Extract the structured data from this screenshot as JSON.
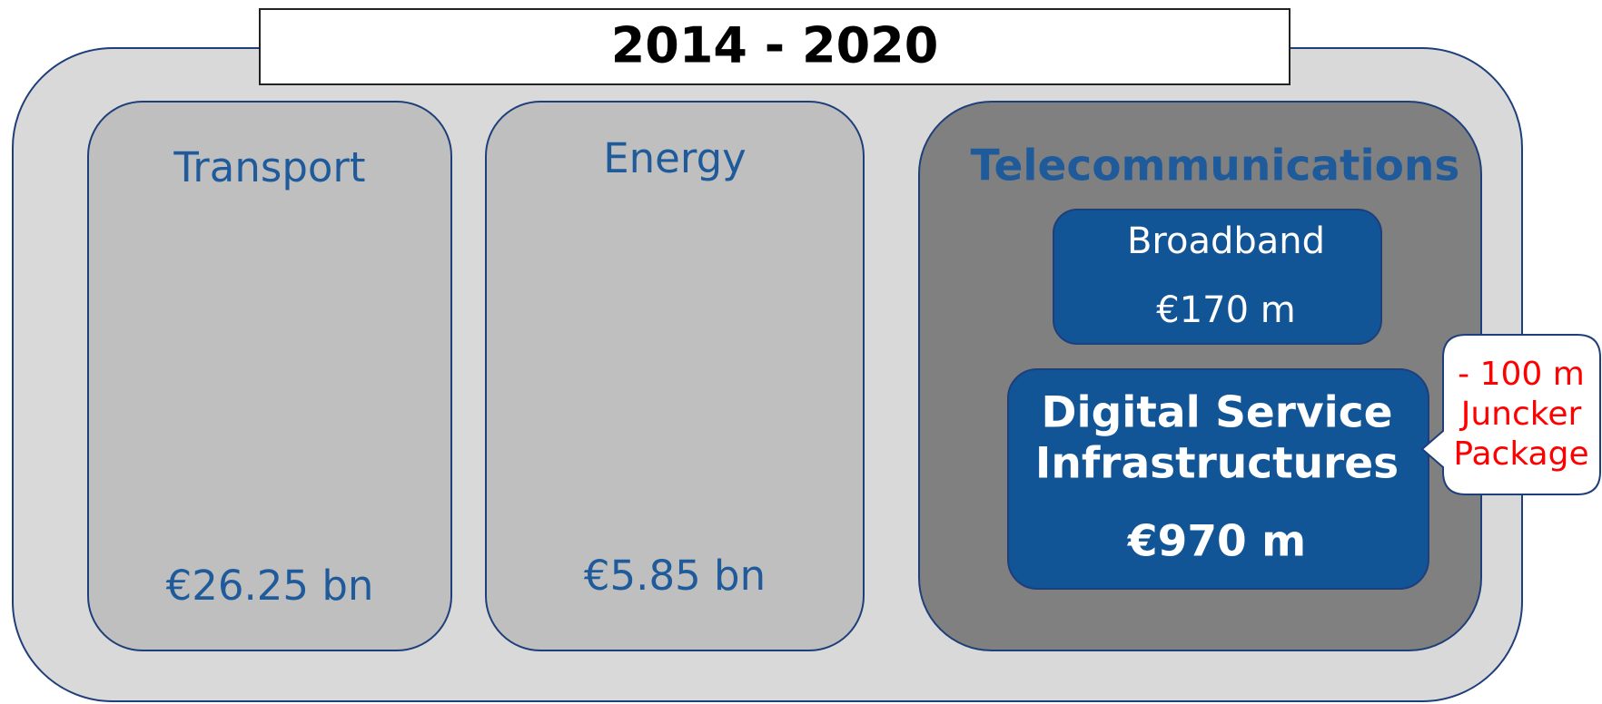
{
  "title": "2014 - 2020",
  "sectors": [
    {
      "label": "Transport",
      "amount": "€26.25 bn"
    },
    {
      "label": "Energy",
      "amount": "€5.85 bn"
    },
    {
      "label": "Telecommunications",
      "parts": [
        {
          "label": "Broadband",
          "amount": "€170 m"
        },
        {
          "label_lines": [
            "Digital Service",
            "Infrastructures"
          ],
          "amount": "€970 m"
        }
      ]
    }
  ],
  "callout": {
    "lines": [
      "- 100 m",
      "Juncker",
      "Package"
    ]
  }
}
